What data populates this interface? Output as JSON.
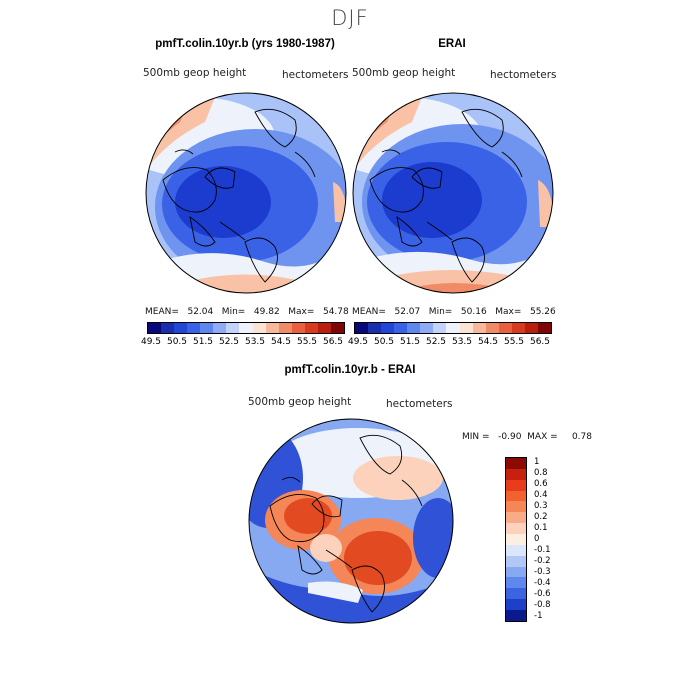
{
  "title": "DJF",
  "panels": [
    {
      "title": "pmfT.colin.10yr.b (yrs 1980-1987)",
      "field_label": "500mb geop height",
      "units_label": "hectometers",
      "stats": "MEAN=   52.04   Min=   49.82   Max=   54.78"
    },
    {
      "title": "ERAI",
      "field_label": "500mb geop height",
      "units_label": "hectometers",
      "stats": "MEAN=   52.07   Min=   50.16   Max=   55.26"
    }
  ],
  "top_colorbar": {
    "ticks": [
      "49.5",
      "50.5",
      "51.5",
      "52.5",
      "53.5",
      "54.5",
      "55.5",
      "56.5"
    ],
    "colors": [
      "#08087a",
      "#1a2fb0",
      "#2346d6",
      "#3a62e6",
      "#5f85ef",
      "#8fabf4",
      "#c2d3f9",
      "#eef2fb",
      "#fde3d3",
      "#f8b99a",
      "#f08b68",
      "#e8603f",
      "#d83a1f",
      "#b81d0d",
      "#7f0606"
    ]
  },
  "diff_panel": {
    "title": "pmfT.colin.10yr.b - ERAI",
    "field_label": "500mb geop height",
    "units_label": "hectometers",
    "stats": "MIN =   -0.90  MAX =     0.78"
  },
  "diff_colorbar": {
    "labels": [
      "1",
      "0.8",
      "0.6",
      "0.4",
      "0.3",
      "0.2",
      "0.1",
      "0",
      "-0.1",
      "-0.2",
      "-0.3",
      "-0.4",
      "-0.6",
      "-0.8",
      "-1"
    ],
    "colors": [
      "#8b0a04",
      "#c8200e",
      "#e83c1c",
      "#f1622f",
      "#f58658",
      "#f9ab88",
      "#fcd2bc",
      "#fdeee2",
      "#dbe6fb",
      "#b1c8f7",
      "#86a9f1",
      "#5e88ec",
      "#3a64e0",
      "#1e3fc8",
      "#0a1a8c"
    ]
  },
  "map_colors": {
    "h_very_low": "#1c3cd0",
    "h_low": "#3a62e6",
    "h_mid": "#6f94f0",
    "h_pale": "#a9c2f7",
    "h_white": "#eef2fb",
    "h_pink": "#f9c2a6",
    "h_orange": "#f08b68",
    "h_red": "#d83a1f",
    "d_red": "#e24a22",
    "d_orange": "#f58658",
    "d_pale": "#fcd2bc",
    "d_blue": "#86a9f1",
    "d_deep": "#2f52d6",
    "d_white": "#eef2fb"
  }
}
